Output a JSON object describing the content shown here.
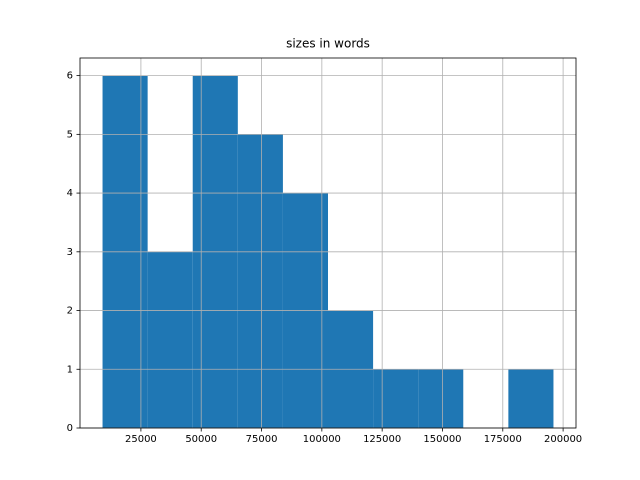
{
  "chart_data": {
    "type": "histogram",
    "title": "sizes in words",
    "bins": [
      9100,
      27790,
      46480,
      65170,
      83860,
      102550,
      121240,
      139930,
      158620,
      177310,
      196000
    ],
    "values": [
      6,
      3,
      6,
      5,
      4,
      2,
      1,
      1,
      0,
      1
    ],
    "color": "#1f77b4",
    "xlim": [
      -245,
      205345
    ],
    "xticks": [
      25000,
      50000,
      75000,
      100000,
      125000,
      150000,
      175000,
      200000
    ],
    "ylim": [
      0,
      6.3
    ],
    "yticks": [
      0,
      1,
      2,
      3,
      4,
      5,
      6
    ],
    "grid": true
  }
}
